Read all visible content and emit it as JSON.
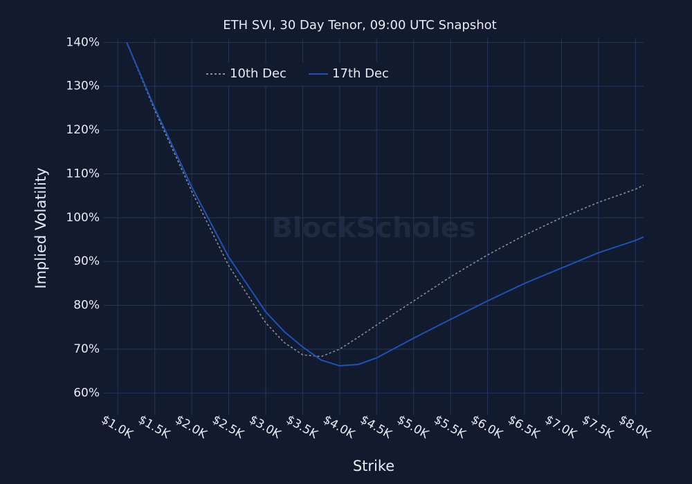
{
  "chart_data": {
    "type": "line",
    "title": "ETH SVI, 30 Day Tenor, 09:00 UTC Snapshot",
    "x_label": "Strike",
    "y_label": "Implied Volatility",
    "watermark": "BlockScholes",
    "x": [
      1120,
      1500,
      2000,
      2500,
      3000,
      3250,
      3500,
      3750,
      4000,
      4250,
      4500,
      5000,
      5500,
      6000,
      6500,
      7000,
      7500,
      8000,
      8110
    ],
    "series": [
      {
        "name": "10th Dec",
        "color": "#8a8f99",
        "dash": true,
        "values": [
          140,
          124.5,
          106,
          89,
          76,
          71.5,
          68.7,
          68.3,
          70,
          72.7,
          75.5,
          81,
          86.5,
          91.5,
          96,
          100,
          103.5,
          106.5,
          107.4
        ]
      },
      {
        "name": "17th Dec",
        "color": "#1f52b8",
        "dash": false,
        "values": [
          140,
          125,
          107,
          91,
          78.5,
          74,
          70.5,
          67.5,
          66.2,
          66.5,
          68,
          72.5,
          76.8,
          81,
          85,
          88.5,
          92,
          94.8,
          95.6
        ]
      }
    ],
    "xlim": [
      810,
      8110
    ],
    "ylim": [
      55,
      141
    ],
    "xticks": [
      {
        "value": 1000,
        "label": "$1.0K"
      },
      {
        "value": 1500,
        "label": "$1.5K"
      },
      {
        "value": 2000,
        "label": "$2.0K"
      },
      {
        "value": 2500,
        "label": "$2.5K"
      },
      {
        "value": 3000,
        "label": "$3.0K"
      },
      {
        "value": 3500,
        "label": "$3.5K"
      },
      {
        "value": 4000,
        "label": "$4.0K"
      },
      {
        "value": 4500,
        "label": "$4.5K"
      },
      {
        "value": 5000,
        "label": "$5.0K"
      },
      {
        "value": 5500,
        "label": "$5.5K"
      },
      {
        "value": 6000,
        "label": "$6.0K"
      },
      {
        "value": 6500,
        "label": "$6.5K"
      },
      {
        "value": 7000,
        "label": "$7.0K"
      },
      {
        "value": 7500,
        "label": "$7.5K"
      },
      {
        "value": 8000,
        "label": "$8.0K"
      }
    ],
    "yticks": [
      {
        "value": 60,
        "label": "60%"
      },
      {
        "value": 70,
        "label": "70%"
      },
      {
        "value": 80,
        "label": "80%"
      },
      {
        "value": 90,
        "label": "90%"
      },
      {
        "value": 100,
        "label": "100%"
      },
      {
        "value": 110,
        "label": "110%"
      },
      {
        "value": 120,
        "label": "120%"
      },
      {
        "value": 130,
        "label": "130%"
      },
      {
        "value": 140,
        "label": "140%"
      }
    ],
    "grid": true,
    "legend": "top"
  }
}
